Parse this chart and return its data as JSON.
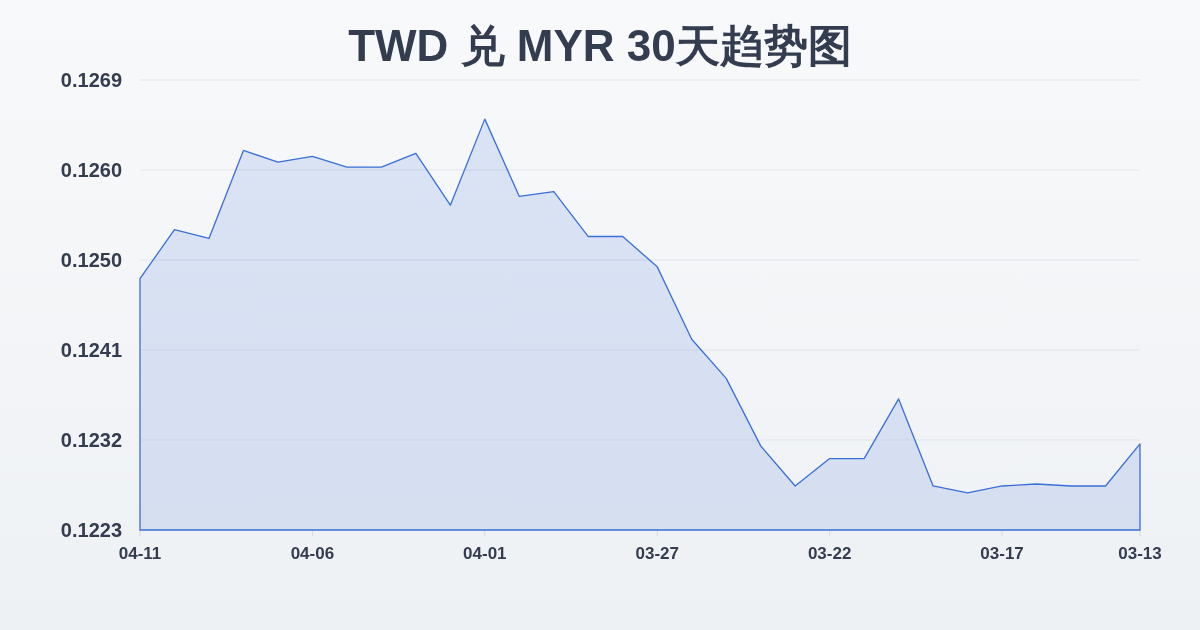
{
  "chart_data": {
    "type": "area",
    "title": "TWD 兑 MYR 30天趋势图",
    "categories": [
      "04-11",
      null,
      null,
      null,
      null,
      "04-06",
      null,
      null,
      null,
      null,
      "04-01",
      null,
      null,
      null,
      null,
      "03-27",
      null,
      null,
      null,
      null,
      "03-22",
      null,
      null,
      null,
      null,
      "03-17",
      null,
      null,
      null,
      "03-13"
    ],
    "series": [
      {
        "color": "#3a6fd6",
        "values": [
          0.12485,
          0.12535,
          0.12526,
          0.12616,
          0.12604,
          0.1261,
          0.12599,
          0.12599,
          0.12613,
          0.1256,
          0.12648,
          0.12569,
          0.12574,
          0.12528,
          0.12528,
          0.12497,
          0.12423,
          0.12383,
          0.12314,
          0.12273,
          0.12301,
          0.12301,
          0.12362,
          0.12273,
          0.12266,
          0.12273,
          0.12275,
          0.12273,
          0.12273,
          0.12316
        ]
      }
    ],
    "ylim": [
      0.12228,
      0.12688
    ],
    "yticks": [
      {
        "value": 0.12228,
        "label": "0.1223"
      },
      0.1232,
      {
        "value": 0.12412,
        "label": "0.1241"
      },
      {
        "value": 0.12504,
        "label": "0.1250"
      },
      {
        "value": 0.12596,
        "label": "0.1260"
      },
      {
        "value": 0.12688,
        "label": "0.1269"
      }
    ],
    "grid": "y"
  }
}
